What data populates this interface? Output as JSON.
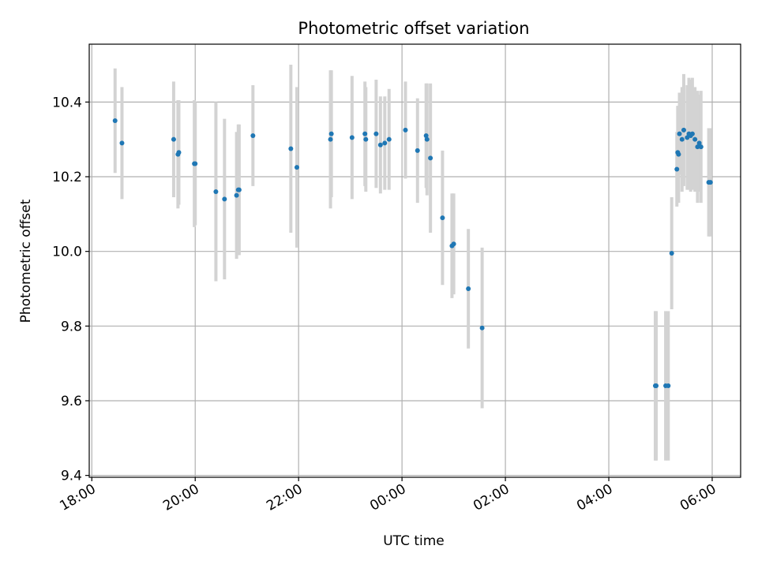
{
  "chart_data": {
    "type": "scatter",
    "title": "Photometric offset variation",
    "xlabel": "UTC time",
    "ylabel": "Photometric offset",
    "x_ticks": [
      "18:00",
      "20:00",
      "22:00",
      "00:00",
      "02:00",
      "04:00",
      "06:00"
    ],
    "y_ticks": [
      "9.4",
      "9.6",
      "9.8",
      "10.0",
      "10.2",
      "10.4"
    ],
    "y_tick_values": [
      9.4,
      9.6,
      9.8,
      10.0,
      10.2,
      10.4
    ],
    "xlim": [
      "2000-01-01T17:57",
      "2000-01-02T06:33"
    ],
    "ylim": [
      9.395,
      10.555
    ],
    "grid": true,
    "marker_color": "#1f77b4",
    "errorbar_color": "#d3d3d3",
    "points": [
      {
        "t": "2000-01-01T18:27",
        "y": 10.35,
        "err": 0.14
      },
      {
        "t": "2000-01-01T18:35",
        "y": 10.29,
        "err": 0.15
      },
      {
        "t": "2000-01-01T19:35",
        "y": 10.3,
        "err": 0.155
      },
      {
        "t": "2000-01-01T19:40",
        "y": 10.26,
        "err": 0.145
      },
      {
        "t": "2000-01-01T19:41",
        "y": 10.265,
        "err": 0.14
      },
      {
        "t": "2000-01-01T19:59",
        "y": 10.235,
        "err": 0.17
      },
      {
        "t": "2000-01-01T20:00",
        "y": 10.235,
        "err": 0.165
      },
      {
        "t": "2000-01-01T20:24",
        "y": 10.16,
        "err": 0.24
      },
      {
        "t": "2000-01-01T20:34",
        "y": 10.14,
        "err": 0.215
      },
      {
        "t": "2000-01-01T20:48",
        "y": 10.15,
        "err": 0.17
      },
      {
        "t": "2000-01-01T20:50",
        "y": 10.165,
        "err": 0.175
      },
      {
        "t": "2000-01-01T20:51",
        "y": 10.165,
        "err": 0.175
      },
      {
        "t": "2000-01-01T21:07",
        "y": 10.31,
        "err": 0.135
      },
      {
        "t": "2000-01-01T21:51",
        "y": 10.275,
        "err": 0.225
      },
      {
        "t": "2000-01-01T21:58",
        "y": 10.225,
        "err": 0.215
      },
      {
        "t": "2000-01-01T22:37",
        "y": 10.3,
        "err": 0.185
      },
      {
        "t": "2000-01-01T22:38",
        "y": 10.315,
        "err": 0.17
      },
      {
        "t": "2000-01-01T23:02",
        "y": 10.305,
        "err": 0.165
      },
      {
        "t": "2000-01-01T23:17",
        "y": 10.315,
        "err": 0.14
      },
      {
        "t": "2000-01-01T23:18",
        "y": 10.3,
        "err": 0.14
      },
      {
        "t": "2000-01-01T23:30",
        "y": 10.315,
        "err": 0.145
      },
      {
        "t": "2000-01-01T23:35",
        "y": 10.285,
        "err": 0.13
      },
      {
        "t": "2000-01-01T23:40",
        "y": 10.29,
        "err": 0.125
      },
      {
        "t": "2000-01-01T23:45",
        "y": 10.3,
        "err": 0.135
      },
      {
        "t": "2000-01-02T00:04",
        "y": 10.325,
        "err": 0.13
      },
      {
        "t": "2000-01-02T00:18",
        "y": 10.27,
        "err": 0.14
      },
      {
        "t": "2000-01-02T00:28",
        "y": 10.31,
        "err": 0.14
      },
      {
        "t": "2000-01-02T00:29",
        "y": 10.3,
        "err": 0.15
      },
      {
        "t": "2000-01-02T00:33",
        "y": 10.25,
        "err": 0.2
      },
      {
        "t": "2000-01-02T00:47",
        "y": 10.09,
        "err": 0.18
      },
      {
        "t": "2000-01-02T00:58",
        "y": 10.015,
        "err": 0.14
      },
      {
        "t": "2000-01-02T01:00",
        "y": 10.02,
        "err": 0.135
      },
      {
        "t": "2000-01-02T01:17",
        "y": 9.9,
        "err": 0.16
      },
      {
        "t": "2000-01-02T01:33",
        "y": 9.795,
        "err": 0.215
      },
      {
        "t": "2000-01-02T04:54",
        "y": 9.64,
        "err": 0.2
      },
      {
        "t": "2000-01-02T04:55",
        "y": 9.64,
        "err": 0.2
      },
      {
        "t": "2000-01-02T05:06",
        "y": 9.64,
        "err": 0.2
      },
      {
        "t": "2000-01-02T05:09",
        "y": 9.64,
        "err": 0.2
      },
      {
        "t": "2000-01-02T05:13",
        "y": 9.995,
        "err": 0.15
      },
      {
        "t": "2000-01-02T05:19",
        "y": 10.22,
        "err": 0.1
      },
      {
        "t": "2000-01-02T05:20",
        "y": 10.265,
        "err": 0.125
      },
      {
        "t": "2000-01-02T05:21",
        "y": 10.26,
        "err": 0.13
      },
      {
        "t": "2000-01-02T05:22",
        "y": 10.315,
        "err": 0.11
      },
      {
        "t": "2000-01-02T05:25",
        "y": 10.3,
        "err": 0.14
      },
      {
        "t": "2000-01-02T05:27",
        "y": 10.325,
        "err": 0.15
      },
      {
        "t": "2000-01-02T05:31",
        "y": 10.305,
        "err": 0.14
      },
      {
        "t": "2000-01-02T05:33",
        "y": 10.315,
        "err": 0.15
      },
      {
        "t": "2000-01-02T05:35",
        "y": 10.31,
        "err": 0.15
      },
      {
        "t": "2000-01-02T05:37",
        "y": 10.315,
        "err": 0.15
      },
      {
        "t": "2000-01-02T05:40",
        "y": 10.3,
        "err": 0.14
      },
      {
        "t": "2000-01-02T05:43",
        "y": 10.28,
        "err": 0.15
      },
      {
        "t": "2000-01-02T05:45",
        "y": 10.29,
        "err": 0.13
      },
      {
        "t": "2000-01-02T05:47",
        "y": 10.28,
        "err": 0.15
      },
      {
        "t": "2000-01-02T05:56",
        "y": 10.185,
        "err": 0.145
      },
      {
        "t": "2000-01-02T05:58",
        "y": 10.185,
        "err": 0.145
      }
    ]
  }
}
